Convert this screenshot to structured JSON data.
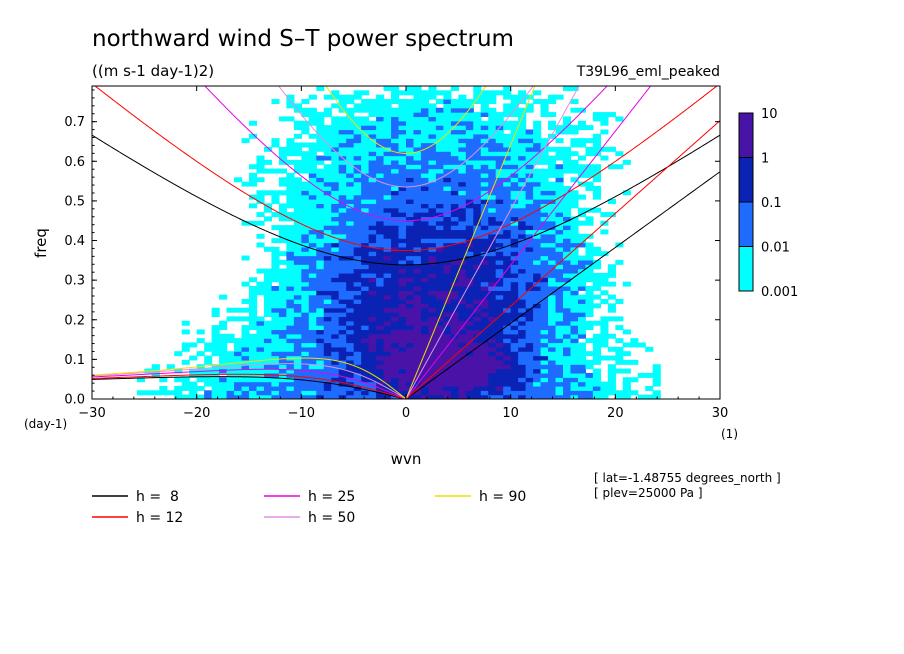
{
  "chart_data": {
    "type": "heatmap",
    "title": "northward wind S–T power spectrum",
    "subtitle": "((m s-1 day-1)2)",
    "run_label": "T39L96_eml_peaked",
    "xlabel": "wvn",
    "ylabel": "freq",
    "x_unit": "(1)",
    "y_unit": "(day-1)",
    "xlim": [
      -30,
      30
    ],
    "ylim": [
      0,
      0.79
    ],
    "x_ticks": [
      -30,
      -20,
      -10,
      0,
      10,
      20,
      30
    ],
    "x_tick_labels": [
      "−30",
      "−20",
      "−10",
      "0",
      "10",
      "20",
      "30"
    ],
    "y_ticks": [
      0.0,
      0.1,
      0.2,
      0.3,
      0.4,
      0.5,
      0.6,
      0.7
    ],
    "y_tick_labels": [
      "0.0",
      "0.1",
      "0.2",
      "0.3",
      "0.4",
      "0.5",
      "0.6",
      "0.7"
    ],
    "colorbar": {
      "levels": [
        0.001,
        0.01,
        0.1,
        1,
        10
      ],
      "labels": [
        "0.001",
        "0.01",
        "0.1",
        "1",
        "10"
      ],
      "colors": [
        "#00ffff",
        "#1e6cff",
        "#0a23b4",
        "#4a13a8"
      ]
    },
    "dispersion_curves": [
      {
        "label": "h =  8",
        "h": 8,
        "color": "#000000"
      },
      {
        "label": "h = 12",
        "h": 12,
        "color": "#ff0000"
      },
      {
        "label": "h = 25",
        "h": 25,
        "color": "#e800e8"
      },
      {
        "label": "h = 50",
        "h": 50,
        "color": "#e090e0"
      },
      {
        "label": "h = 90",
        "h": 90,
        "color": "#f0e000"
      }
    ],
    "annotations": [
      "[ lat=-1.48755 degrees_north ]",
      "[ plev=25000 Pa ]"
    ]
  }
}
